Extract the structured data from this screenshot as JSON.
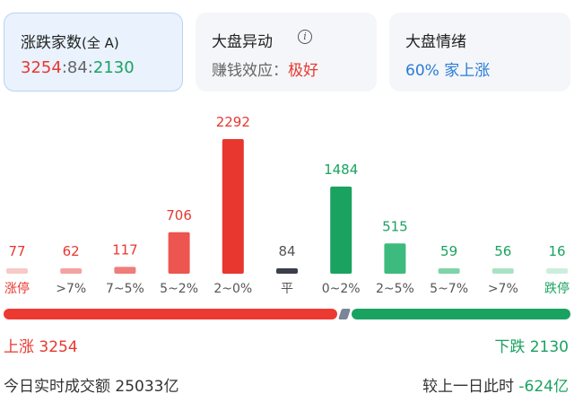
{
  "cards": {
    "counts": {
      "title": "涨跌家数",
      "scope": "(全 A)",
      "up": "3254",
      "sep1": ":",
      "flat": "84",
      "sep2": ":",
      "down": "2130"
    },
    "movement": {
      "title": "大盘异动",
      "info_icon": "info-icon",
      "label": "赚钱效应：",
      "value": "极好"
    },
    "mood": {
      "title": "大盘情绪",
      "value": "60% 家上涨"
    }
  },
  "chart_data": {
    "type": "bar",
    "categories": [
      "涨停",
      ">7%",
      "7~5%",
      "5~2%",
      "2~0%",
      "平",
      "0~2%",
      "2~5%",
      "5~7%",
      ">7%",
      "跌停"
    ],
    "values": [
      77,
      62,
      117,
      706,
      2292,
      84,
      1484,
      515,
      59,
      56,
      16
    ],
    "value_labels": [
      "77",
      "62",
      "117",
      "706",
      "2292",
      "84",
      "1484",
      "515",
      "59",
      "56",
      "16"
    ],
    "colors": [
      "#f7c9c7",
      "#f3a3a0",
      "#ef7d79",
      "#ec5550",
      "#e8372f",
      "#3a3f4a",
      "#1aa260",
      "#3dbb7e",
      "#7ed3a8",
      "#a9e2c3",
      "#cdeedc"
    ],
    "label_colors": [
      "#e8372f",
      "#e8372f",
      "#e8372f",
      "#e8372f",
      "#e8372f",
      "#555555",
      "#1aa260",
      "#1aa260",
      "#1aa260",
      "#1aa260",
      "#1aa260"
    ],
    "edge_label_colors": [
      "#e8372f",
      "#555555",
      "#555555",
      "#555555",
      "#555555",
      "#555555",
      "#555555",
      "#555555",
      "#555555",
      "#555555",
      "#1aa260"
    ],
    "title": "",
    "xlabel": "",
    "ylabel": "",
    "ylim": [
      0,
      2292
    ]
  },
  "summary": {
    "up_label": "上涨 3254",
    "down_label": "下跌 2130",
    "turnover_label": "今日实时成交额",
    "turnover_value": "25033亿",
    "compare_label": "较上一日此时",
    "compare_value": "-624亿"
  },
  "colors": {
    "up": "#e8372f",
    "down": "#1aa260",
    "flat": "#3a3f4a",
    "accent": "#2a7bd6"
  }
}
